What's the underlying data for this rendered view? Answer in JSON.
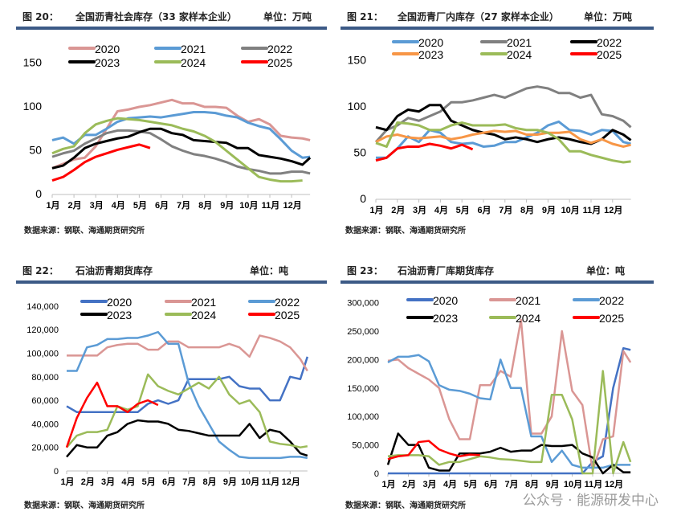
{
  "panels": [
    {
      "fig": "图 20：",
      "title": "全国沥青社会库存（33 家样本企业）",
      "unit": "单位：万吨",
      "source": "数据来源：钢联、海通期货研究所"
    },
    {
      "fig": "图 21：",
      "title": "全国沥青厂内库存（27 家样本企业）",
      "unit": "单位：万吨",
      "source": "数据来源：钢联、海通期货研究所"
    },
    {
      "fig": "图 22：",
      "title": "石油沥青期货库存",
      "unit": "单位：吨",
      "source": "数据来源：钢联、海通期货研究所"
    },
    {
      "fig": "图 23：",
      "title": "石油沥青厂库期货库存",
      "unit": "单位：吨",
      "source": "数据来源：钢联、海通期货研究所"
    }
  ],
  "watermark": "公众号 · 能源研发中心",
  "chart_data": [
    {
      "type": "line",
      "title": "全国沥青社会库存（33 家样本企业）",
      "ylabel": "万吨",
      "ylim": [
        0,
        150
      ],
      "yticks": [
        "0",
        "50",
        "100",
        "150"
      ],
      "ytick_values": [
        0,
        50,
        100,
        150
      ],
      "xticks": [
        "1月",
        "2月",
        "3月",
        "4月",
        "5月",
        "6月",
        "7月",
        "8月",
        "9月",
        "10月",
        "11月",
        "12月"
      ],
      "x_step_months": 0.5,
      "legend": "top",
      "series": [
        {
          "name": "2020",
          "color": "#DA9694",
          "values": [
            30,
            35,
            40,
            42,
            55,
            75,
            95,
            97,
            100,
            102,
            105,
            108,
            104,
            104,
            100,
            100,
            99,
            90,
            83,
            86,
            80,
            67,
            65,
            64,
            62
          ]
        },
        {
          "name": "2021",
          "color": "#5B9BD5",
          "values": [
            62,
            65,
            58,
            68,
            68,
            75,
            83,
            87,
            88,
            89,
            88,
            90,
            92,
            94,
            94,
            93,
            90,
            88,
            82,
            78,
            75,
            63,
            50,
            42,
            43
          ]
        },
        {
          "name": "2022",
          "color": "#808080",
          "values": [
            43,
            47,
            50,
            58,
            64,
            70,
            73,
            73,
            72,
            70,
            63,
            55,
            50,
            46,
            44,
            41,
            37,
            32,
            29,
            27,
            24,
            24,
            26,
            26,
            24
          ]
        },
        {
          "name": "2023",
          "color": "#000000",
          "values": [
            30,
            33,
            42,
            53,
            58,
            61,
            64,
            66,
            71,
            75,
            75,
            70,
            68,
            62,
            61,
            60,
            59,
            53,
            53,
            45,
            43,
            41,
            38,
            34,
            42
          ]
        },
        {
          "name": "2024",
          "color": "#9BBB59",
          "values": [
            47,
            52,
            55,
            70,
            80,
            84,
            87,
            86,
            85,
            83,
            81,
            79,
            75,
            72,
            67,
            60,
            50,
            40,
            30,
            20,
            17,
            15,
            15,
            16
          ]
        },
        {
          "name": "2025",
          "color": "#FF0000",
          "values": [
            16,
            20,
            28,
            37,
            43,
            47,
            51,
            54,
            57,
            53
          ]
        }
      ]
    },
    {
      "type": "line",
      "title": "全国沥青厂内库存（27 家样本企业）",
      "ylabel": "万吨",
      "ylim": [
        0,
        150
      ],
      "yticks": [
        "0",
        "50",
        "100",
        "150"
      ],
      "ytick_values": [
        0,
        50,
        100,
        150
      ],
      "xticks": [
        "1月",
        "2月",
        "3月",
        "4月",
        "5月",
        "6月",
        "7月",
        "8月",
        "9月",
        "10月",
        "11月",
        "12月"
      ],
      "x_step_months": 0.5,
      "legend": "top",
      "series": [
        {
          "name": "2020",
          "color": "#5B9BD5",
          "values": [
            45,
            45,
            55,
            68,
            62,
            75,
            72,
            62,
            60,
            61,
            57,
            58,
            62,
            62,
            67,
            72,
            80,
            84,
            75,
            74,
            70,
            75,
            74,
            62,
            60
          ]
        },
        {
          "name": "2021",
          "color": "#808080",
          "values": [
            62,
            75,
            80,
            88,
            85,
            90,
            95,
            105,
            105,
            107,
            110,
            113,
            110,
            115,
            120,
            122,
            120,
            115,
            115,
            110,
            113,
            92,
            90,
            85,
            78
          ]
        },
        {
          "name": "2022",
          "color": "#000000",
          "values": [
            78,
            75,
            90,
            97,
            95,
            102,
            102,
            85,
            80,
            75,
            72,
            70,
            65,
            67,
            65,
            62,
            65,
            67,
            65,
            62,
            60,
            65,
            75,
            70,
            64
          ]
        },
        {
          "name": "2023",
          "color": "#F79646",
          "values": [
            62,
            68,
            70,
            67,
            66,
            67,
            68,
            65,
            67,
            70,
            72,
            74,
            73,
            74,
            70,
            70,
            72,
            72,
            73,
            65,
            61,
            65,
            60,
            57,
            59
          ]
        },
        {
          "name": "2024",
          "color": "#9BBB59",
          "values": [
            61,
            57,
            83,
            82,
            80,
            75,
            75,
            80,
            83,
            80,
            80,
            80,
            81,
            77,
            75,
            75,
            72,
            65,
            52,
            52,
            48,
            45,
            42,
            40,
            41
          ]
        },
        {
          "name": "2025",
          "color": "#FF0000",
          "values": [
            42,
            45,
            55,
            57,
            57,
            60,
            58,
            55,
            59,
            54
          ]
        }
      ]
    },
    {
      "type": "line",
      "title": "石油沥青期货库存",
      "ylabel": "吨",
      "ylim": [
        0,
        140000
      ],
      "yticks": [
        "0",
        "20,000",
        "40,000",
        "60,000",
        "80,000",
        "100,000",
        "120,000",
        "140,000"
      ],
      "ytick_values": [
        0,
        20000,
        40000,
        60000,
        80000,
        100000,
        120000,
        140000
      ],
      "xticks": [
        "1月",
        "2月",
        "3月",
        "4月",
        "5月",
        "6月",
        "7月",
        "8月",
        "9月",
        "10月",
        "11月",
        "12月"
      ],
      "x_step_months": 0.5,
      "legend": "top",
      "series": [
        {
          "name": "2020",
          "color": "#4472C4",
          "values": [
            55000,
            50000,
            50000,
            50000,
            50000,
            50000,
            50000,
            50000,
            57000,
            60000,
            57000,
            60000,
            78000,
            78000,
            78000,
            78000,
            80000,
            72000,
            70000,
            70000,
            60000,
            60000,
            80000,
            78000,
            97000
          ]
        },
        {
          "name": "2021",
          "color": "#DA9694",
          "values": [
            98000,
            98000,
            98000,
            98000,
            105000,
            107000,
            108000,
            108000,
            103000,
            103000,
            110000,
            110000,
            105000,
            105000,
            105000,
            105000,
            108000,
            105000,
            97000,
            115000,
            113000,
            110000,
            105000,
            95000,
            85000
          ]
        },
        {
          "name": "2022",
          "color": "#5B9BD5",
          "values": [
            85000,
            85000,
            105000,
            107000,
            112000,
            112000,
            113000,
            113000,
            115000,
            118000,
            108000,
            108000,
            75000,
            55000,
            40000,
            25000,
            18000,
            12000,
            11000,
            11000,
            11000,
            11000,
            12000,
            12000,
            11000
          ]
        },
        {
          "name": "2023",
          "color": "#000000",
          "values": [
            12000,
            22000,
            20000,
            20000,
            30000,
            33000,
            40000,
            43000,
            42000,
            42000,
            40000,
            35000,
            34000,
            32000,
            30000,
            30000,
            30000,
            30000,
            40000,
            28000,
            35000,
            33000,
            25000,
            15000,
            13000
          ]
        },
        {
          "name": "2024",
          "color": "#9BBB59",
          "values": [
            20000,
            30000,
            33000,
            33000,
            35000,
            55000,
            52000,
            55000,
            82000,
            72000,
            68000,
            65000,
            70000,
            75000,
            70000,
            80000,
            65000,
            57000,
            60000,
            50000,
            25000,
            23000,
            22000,
            20000,
            21000
          ]
        },
        {
          "name": "2025",
          "color": "#FF0000",
          "values": [
            20000,
            45000,
            62000,
            75000,
            55000,
            55000,
            50000,
            57000,
            60000,
            56000
          ]
        }
      ]
    },
    {
      "type": "line",
      "title": "石油沥青厂库期货库存",
      "ylabel": "吨",
      "ylim": [
        0,
        300000
      ],
      "yticks": [
        "0",
        "50,000",
        "100,000",
        "150,000",
        "200,000",
        "250,000",
        "300,000"
      ],
      "ytick_values": [
        0,
        50000,
        100000,
        150000,
        200000,
        250000,
        300000
      ],
      "xticks": [
        "1月",
        "2月",
        "3月",
        "4月",
        "5月",
        "6月",
        "7月",
        "8月",
        "9月",
        "10月",
        "11月",
        "12月"
      ],
      "x_step_months": 0.5,
      "legend": "top",
      "series": [
        {
          "name": "2020",
          "color": "#4472C4",
          "values": [
            0,
            0,
            0,
            0,
            0,
            0,
            0,
            0,
            0,
            0,
            0,
            0,
            0,
            0,
            0,
            0,
            0,
            0,
            0,
            0,
            20000,
            30000,
            150000,
            220000,
            217000
          ]
        },
        {
          "name": "2021",
          "color": "#DA9694",
          "values": [
            198000,
            200000,
            185000,
            175000,
            165000,
            150000,
            95000,
            60000,
            60000,
            155000,
            155000,
            180000,
            170000,
            270000,
            70000,
            70000,
            100000,
            250000,
            145000,
            120000,
            5000,
            60000,
            65000,
            215000,
            195000
          ]
        },
        {
          "name": "2022",
          "color": "#5B9BD5",
          "values": [
            195000,
            205000,
            205000,
            208000,
            197000,
            155000,
            147000,
            145000,
            140000,
            132000,
            130000,
            200000,
            150000,
            150000,
            65000,
            65000,
            20000,
            40000,
            15000,
            10000,
            10000,
            10000,
            15000,
            15000,
            15000
          ]
        },
        {
          "name": "2023",
          "color": "#000000",
          "values": [
            15000,
            70000,
            50000,
            50000,
            10000,
            5000,
            5000,
            35000,
            35000,
            35000,
            38000,
            45000,
            38000,
            40000,
            40000,
            50000,
            48000,
            48000,
            50000,
            35000,
            28000,
            0,
            15000,
            2000,
            2000
          ]
        },
        {
          "name": "2024",
          "color": "#9BBB59",
          "values": [
            30000,
            32000,
            32000,
            32000,
            30000,
            15000,
            20000,
            20000,
            25000,
            30000,
            28000,
            25000,
            24000,
            22000,
            20000,
            20000,
            138000,
            138000,
            95000,
            0,
            0,
            180000,
            0,
            55000,
            20000
          ]
        },
        {
          "name": "2025",
          "color": "#FF0000",
          "values": [
            25000,
            30000,
            32000,
            55000,
            57000,
            42000,
            35000,
            30000,
            33000,
            32000
          ]
        }
      ]
    }
  ]
}
